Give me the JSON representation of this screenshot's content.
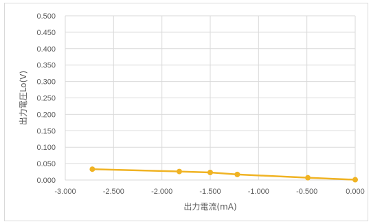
{
  "chart_data": {
    "type": "scatter",
    "title": "",
    "xlabel": "出力電流(mA)",
    "ylabel": "出力電圧Lo(V)",
    "xlim": [
      -3.0,
      0.0
    ],
    "ylim": [
      0.0,
      0.5
    ],
    "x_ticks": [
      "-3.000",
      "-2.500",
      "-2.000",
      "-1.500",
      "-1.000",
      "-0.500",
      "0.000"
    ],
    "y_ticks": [
      "0.000",
      "0.050",
      "0.100",
      "0.150",
      "0.200",
      "0.250",
      "0.300",
      "0.350",
      "0.400",
      "0.450",
      "0.500"
    ],
    "grid": true,
    "legend": "none",
    "series": [
      {
        "color": "#f0b323",
        "x": [
          -2.72,
          -1.82,
          -1.5,
          -1.22,
          -0.49,
          0.0
        ],
        "y": [
          0.033,
          0.026,
          0.023,
          0.017,
          0.007,
          0.001
        ]
      }
    ]
  }
}
